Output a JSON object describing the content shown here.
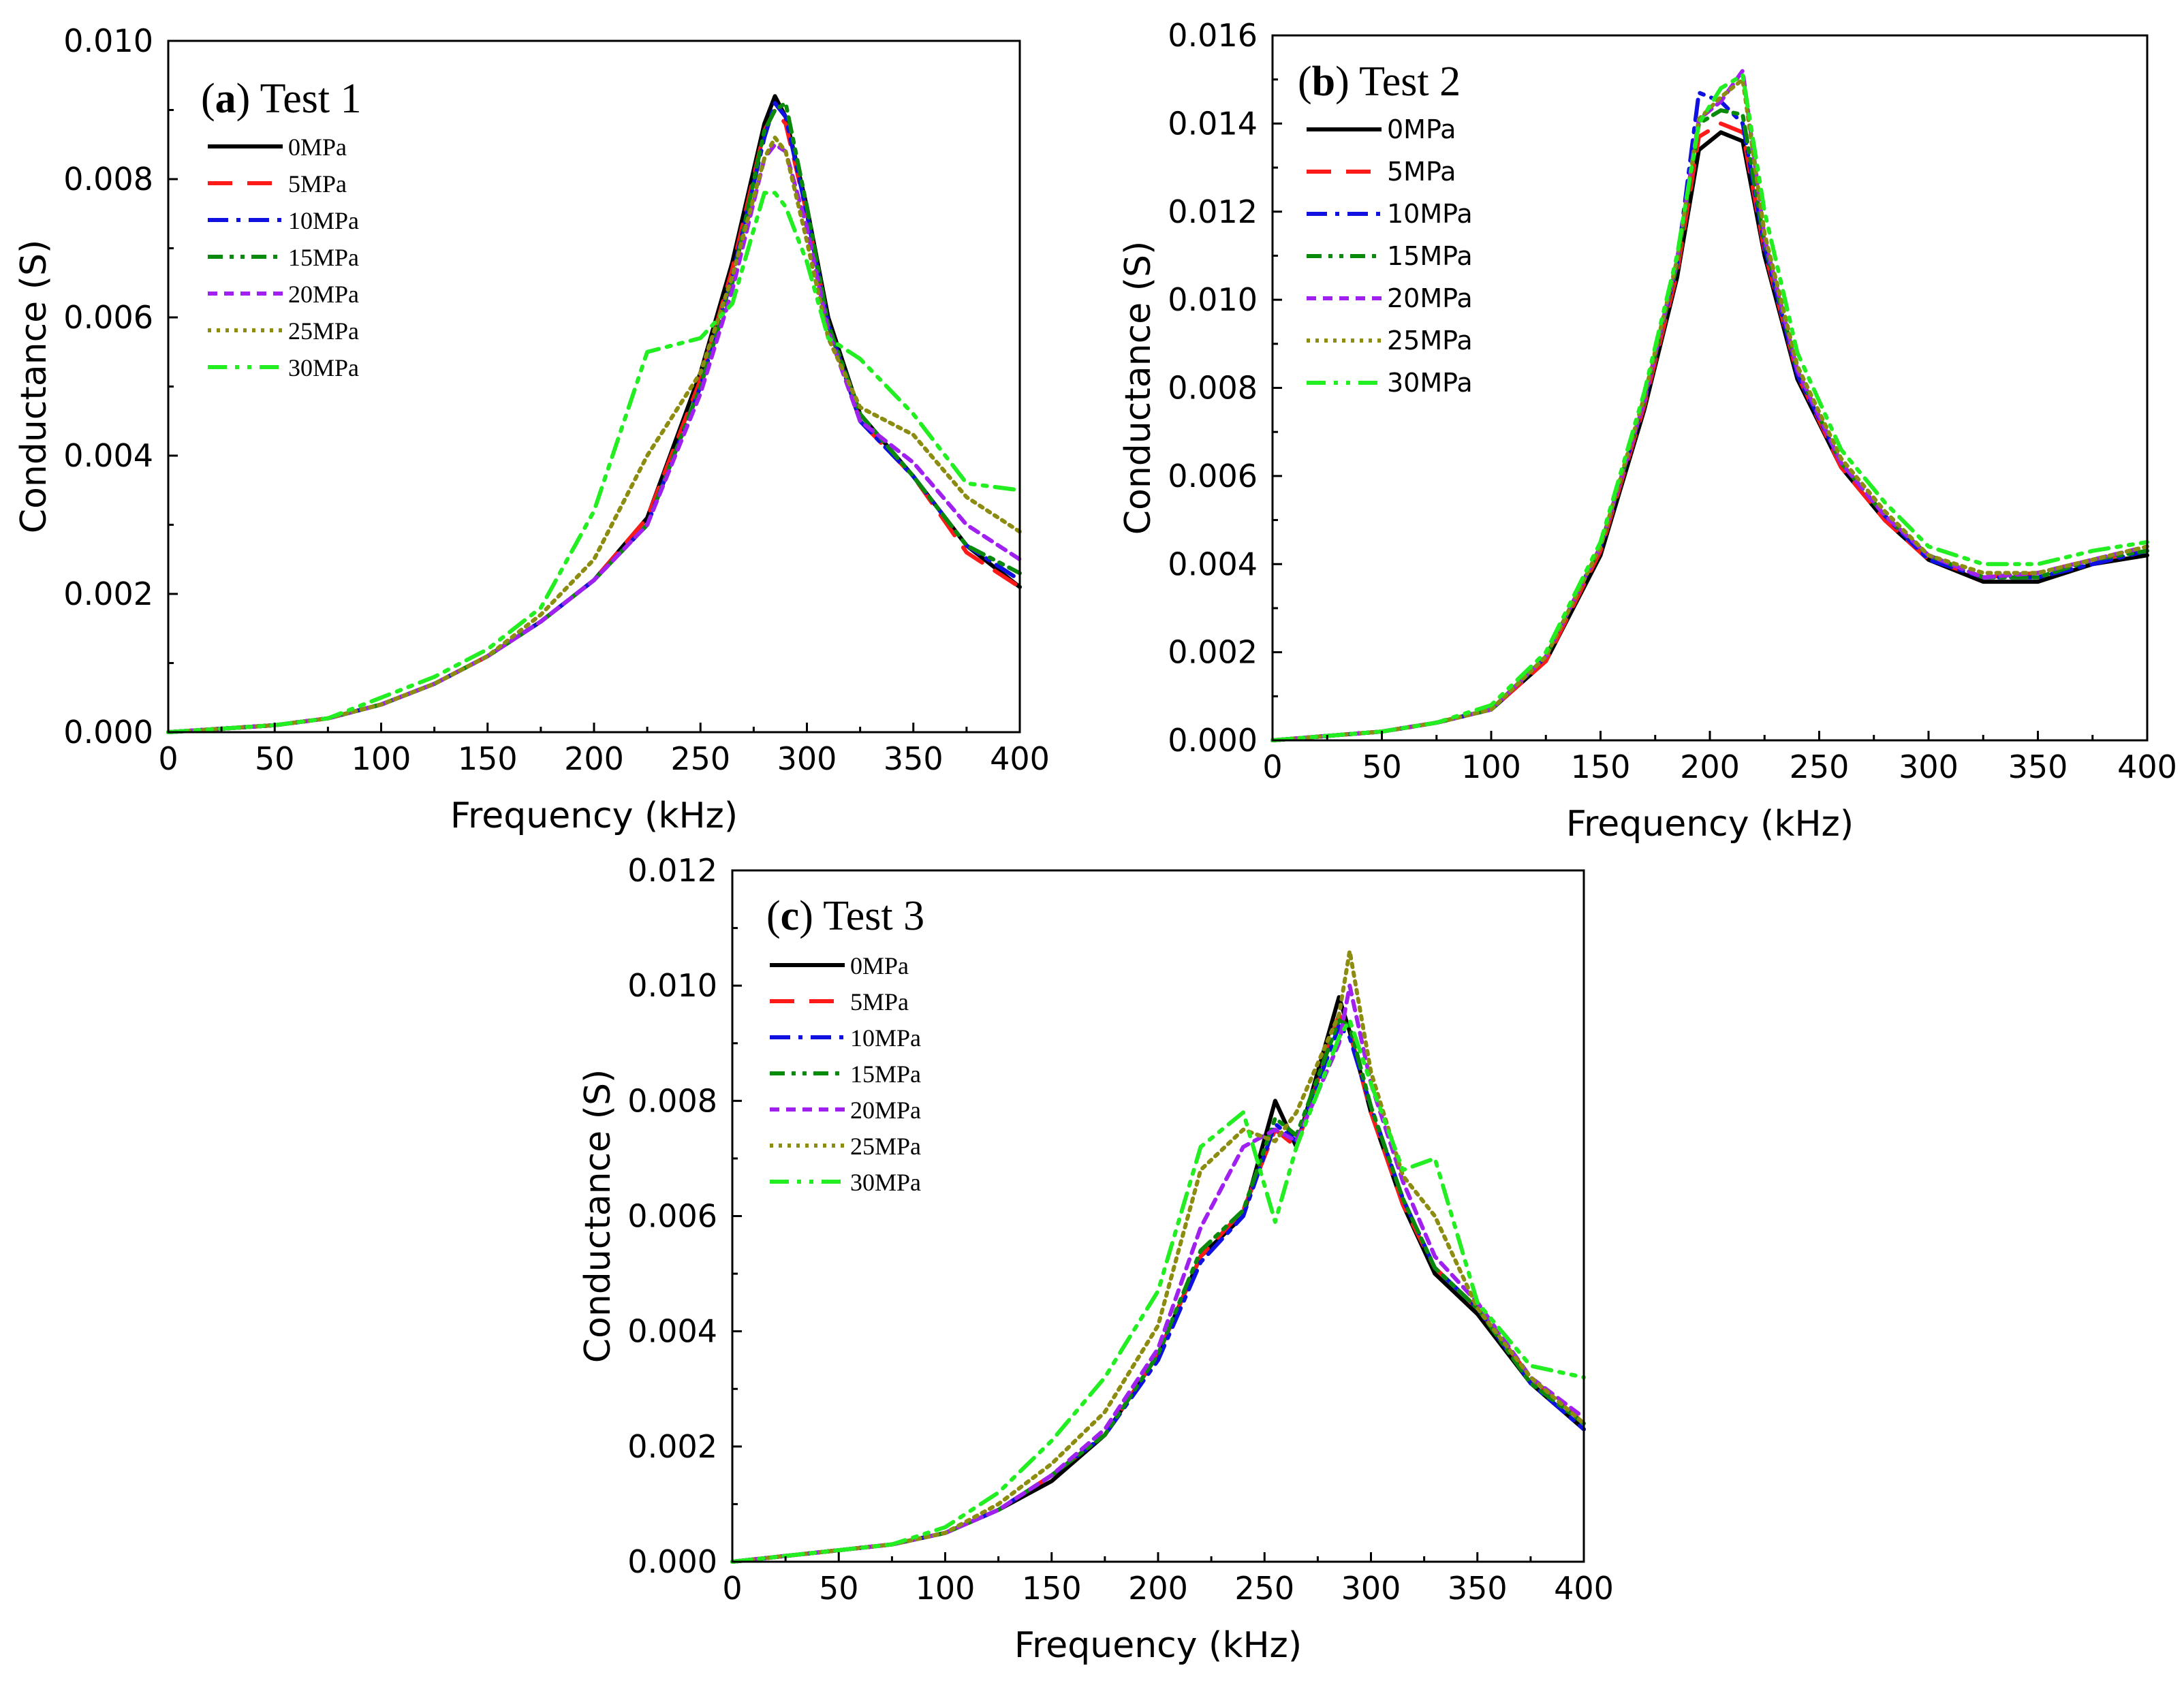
{
  "colors": {
    "0MPa": "#000000",
    "5MPa": "#ff1a1a",
    "10MPa": "#1010e0",
    "15MPa": "#0a8a0a",
    "20MPa": "#a020f0",
    "25MPa": "#8c8c10",
    "30MPa": "#22ee22"
  },
  "chart_data": [
    {
      "type": "line",
      "panel_label": "a",
      "title": "Test 1",
      "xlabel": "Frequency (kHz)",
      "ylabel": "Conductance (S)",
      "xlim": [
        0,
        400
      ],
      "ylim": [
        0,
        0.01
      ],
      "xticks": [
        "0",
        "50",
        "100",
        "150",
        "200",
        "250",
        "300",
        "350",
        "400"
      ],
      "yticks": [
        "0.000",
        "0.002",
        "0.004",
        "0.006",
        "0.008",
        "0.010"
      ],
      "legend_font": "serif",
      "legend": [
        "0MPa",
        "5MPa",
        "10MPa",
        "15MPa",
        "20MPa",
        "25MPa",
        "30MPa"
      ],
      "x": [
        0,
        25,
        50,
        75,
        100,
        125,
        150,
        175,
        200,
        225,
        250,
        265,
        280,
        285,
        290,
        300,
        310,
        325,
        350,
        375,
        400
      ],
      "series": [
        {
          "name": "0MPa",
          "values": [
            0,
            5e-05,
            0.0001,
            0.0002,
            0.0004,
            0.0007,
            0.0011,
            0.0016,
            0.0022,
            0.0031,
            0.0052,
            0.0068,
            0.0088,
            0.0092,
            0.0089,
            0.0076,
            0.006,
            0.0046,
            0.0037,
            0.0027,
            0.0021
          ]
        },
        {
          "name": "5MPa",
          "values": [
            0,
            5e-05,
            0.0001,
            0.0002,
            0.0004,
            0.0007,
            0.0011,
            0.0016,
            0.0022,
            0.0031,
            0.0051,
            0.0067,
            0.0087,
            0.009,
            0.0088,
            0.0075,
            0.0059,
            0.0045,
            0.0037,
            0.0026,
            0.0021
          ]
        },
        {
          "name": "10MPa",
          "values": [
            0,
            5e-05,
            0.0001,
            0.0002,
            0.0004,
            0.0007,
            0.0011,
            0.0016,
            0.0022,
            0.003,
            0.005,
            0.0066,
            0.0086,
            0.0091,
            0.0089,
            0.0075,
            0.0059,
            0.0045,
            0.0037,
            0.0027,
            0.0022
          ]
        },
        {
          "name": "15MPa",
          "values": [
            0,
            5e-05,
            0.0001,
            0.0002,
            0.0004,
            0.0007,
            0.0011,
            0.0016,
            0.0022,
            0.003,
            0.005,
            0.0065,
            0.0087,
            0.009,
            0.0091,
            0.0076,
            0.0059,
            0.0046,
            0.0037,
            0.0027,
            0.0023
          ]
        },
        {
          "name": "20MPa",
          "values": [
            0,
            5e-05,
            0.0001,
            0.0002,
            0.0004,
            0.0007,
            0.0011,
            0.0016,
            0.0022,
            0.003,
            0.0049,
            0.0064,
            0.0083,
            0.0085,
            0.0084,
            0.0073,
            0.0058,
            0.0045,
            0.0039,
            0.003,
            0.0025
          ]
        },
        {
          "name": "25MPa",
          "values": [
            0,
            5e-05,
            0.0001,
            0.0002,
            0.0004,
            0.0007,
            0.0011,
            0.0017,
            0.0025,
            0.004,
            0.0052,
            0.0066,
            0.0083,
            0.0086,
            0.0084,
            0.0071,
            0.0057,
            0.0047,
            0.0043,
            0.0034,
            0.0029
          ]
        },
        {
          "name": "30MPa",
          "values": [
            0,
            5e-05,
            0.0001,
            0.0002,
            0.0005,
            0.0008,
            0.0012,
            0.0018,
            0.0032,
            0.0055,
            0.0057,
            0.0062,
            0.0078,
            0.0078,
            0.0076,
            0.0068,
            0.0057,
            0.0054,
            0.0046,
            0.0036,
            0.0035
          ]
        }
      ]
    },
    {
      "type": "line",
      "panel_label": "b",
      "title": "Test 2",
      "xlabel": "Frequency (kHz)",
      "ylabel": "Conductance (S)",
      "xlim": [
        0,
        400
      ],
      "ylim": [
        0,
        0.016
      ],
      "xticks": [
        "0",
        "50",
        "100",
        "150",
        "200",
        "250",
        "300",
        "350",
        "400"
      ],
      "yticks": [
        "0.000",
        "0.002",
        "0.004",
        "0.006",
        "0.008",
        "0.010",
        "0.012",
        "0.014",
        "0.016"
      ],
      "legend_font": "sans",
      "legend": [
        "0MPa",
        "5MPa",
        "10MPa",
        "15MPa",
        "20MPa",
        "25MPa",
        "30MPa"
      ],
      "x": [
        0,
        25,
        50,
        75,
        100,
        125,
        150,
        170,
        185,
        195,
        205,
        215,
        225,
        240,
        260,
        280,
        300,
        325,
        350,
        375,
        400
      ],
      "series": [
        {
          "name": "0MPa",
          "values": [
            0,
            0.0001,
            0.0002,
            0.0004,
            0.0007,
            0.0018,
            0.0042,
            0.0075,
            0.0105,
            0.0134,
            0.0138,
            0.0136,
            0.011,
            0.0082,
            0.0062,
            0.005,
            0.0041,
            0.0036,
            0.0036,
            0.004,
            0.0042
          ]
        },
        {
          "name": "5MPa",
          "values": [
            0,
            0.0001,
            0.0002,
            0.0004,
            0.0007,
            0.0018,
            0.0043,
            0.0076,
            0.0106,
            0.0137,
            0.014,
            0.0138,
            0.0111,
            0.0083,
            0.0062,
            0.005,
            0.0041,
            0.0037,
            0.0038,
            0.0041,
            0.0043
          ]
        },
        {
          "name": "10MPa",
          "values": [
            0,
            0.0001,
            0.0002,
            0.0004,
            0.0007,
            0.0019,
            0.0044,
            0.0077,
            0.0108,
            0.0147,
            0.0145,
            0.014,
            0.0112,
            0.0083,
            0.0063,
            0.0051,
            0.0041,
            0.0037,
            0.0037,
            0.004,
            0.0043
          ]
        },
        {
          "name": "15MPa",
          "values": [
            0,
            0.0001,
            0.0002,
            0.0004,
            0.0007,
            0.0019,
            0.0044,
            0.0077,
            0.0108,
            0.014,
            0.0143,
            0.0142,
            0.0113,
            0.0084,
            0.0063,
            0.0051,
            0.0042,
            0.0037,
            0.0037,
            0.0041,
            0.0043
          ]
        },
        {
          "name": "20MPa",
          "values": [
            0,
            0.0001,
            0.0002,
            0.0004,
            0.0007,
            0.0019,
            0.0044,
            0.0077,
            0.0109,
            0.0141,
            0.0145,
            0.0152,
            0.0114,
            0.0084,
            0.0063,
            0.0051,
            0.0042,
            0.0037,
            0.0038,
            0.0041,
            0.0044
          ]
        },
        {
          "name": "25MPa",
          "values": [
            0,
            0.0001,
            0.0002,
            0.0004,
            0.0007,
            0.0019,
            0.0044,
            0.0078,
            0.0109,
            0.0141,
            0.0146,
            0.015,
            0.0115,
            0.0085,
            0.0064,
            0.0052,
            0.0042,
            0.0038,
            0.0038,
            0.0041,
            0.0044
          ]
        },
        {
          "name": "30MPa",
          "values": [
            0,
            0.0001,
            0.0002,
            0.0004,
            0.0008,
            0.002,
            0.0045,
            0.0079,
            0.011,
            0.014,
            0.0148,
            0.0151,
            0.012,
            0.0088,
            0.0066,
            0.0054,
            0.0044,
            0.004,
            0.004,
            0.0043,
            0.0045
          ]
        }
      ]
    },
    {
      "type": "line",
      "panel_label": "c",
      "title": "Test 3",
      "xlabel": "Frequency (kHz)",
      "ylabel": "Conductance (S)",
      "xlim": [
        0,
        400
      ],
      "ylim": [
        0,
        0.012
      ],
      "xticks": [
        "0",
        "50",
        "100",
        "150",
        "200",
        "250",
        "300",
        "350",
        "400"
      ],
      "yticks": [
        "0.000",
        "0.002",
        "0.004",
        "0.006",
        "0.008",
        "0.010",
        "0.012"
      ],
      "legend_font": "serif",
      "legend": [
        "0MPa",
        "5MPa",
        "10MPa",
        "15MPa",
        "20MPa",
        "25MPa",
        "30MPa"
      ],
      "x": [
        0,
        25,
        50,
        75,
        100,
        125,
        150,
        175,
        200,
        220,
        240,
        255,
        265,
        285,
        290,
        300,
        315,
        330,
        350,
        375,
        400
      ],
      "series": [
        {
          "name": "0MPa",
          "values": [
            0,
            0.0001,
            0.0002,
            0.0003,
            0.0005,
            0.0009,
            0.0014,
            0.0022,
            0.0036,
            0.0053,
            0.006,
            0.008,
            0.0072,
            0.0098,
            0.0092,
            0.0078,
            0.0062,
            0.005,
            0.0043,
            0.0031,
            0.0023
          ]
        },
        {
          "name": "5MPa",
          "values": [
            0,
            0.0001,
            0.0002,
            0.0003,
            0.0005,
            0.0009,
            0.0015,
            0.0022,
            0.0036,
            0.0053,
            0.0061,
            0.0075,
            0.0072,
            0.0095,
            0.0092,
            0.0078,
            0.0062,
            0.0051,
            0.0044,
            0.0032,
            0.0024
          ]
        },
        {
          "name": "10MPa",
          "values": [
            0,
            0.0001,
            0.0002,
            0.0003,
            0.0005,
            0.0009,
            0.0015,
            0.0022,
            0.0035,
            0.0052,
            0.006,
            0.0076,
            0.0073,
            0.0093,
            0.0091,
            0.0079,
            0.0063,
            0.0051,
            0.0044,
            0.0031,
            0.0023
          ]
        },
        {
          "name": "15MPa",
          "values": [
            0,
            0.0001,
            0.0002,
            0.0003,
            0.0005,
            0.0009,
            0.0015,
            0.0022,
            0.0036,
            0.0054,
            0.0061,
            0.0077,
            0.0074,
            0.0094,
            0.0093,
            0.0079,
            0.0063,
            0.0051,
            0.0044,
            0.0031,
            0.0024
          ]
        },
        {
          "name": "20MPa",
          "values": [
            0,
            0.0001,
            0.0002,
            0.0003,
            0.0005,
            0.0009,
            0.0015,
            0.0023,
            0.0037,
            0.0058,
            0.0072,
            0.0075,
            0.0073,
            0.009,
            0.01,
            0.0083,
            0.0066,
            0.0053,
            0.0045,
            0.0032,
            0.0025
          ]
        },
        {
          "name": "25MPa",
          "values": [
            0,
            0.0001,
            0.0002,
            0.0003,
            0.0005,
            0.001,
            0.0017,
            0.0026,
            0.0041,
            0.0068,
            0.0075,
            0.0073,
            0.0078,
            0.0095,
            0.0106,
            0.0085,
            0.0067,
            0.006,
            0.0044,
            0.0032,
            0.0024
          ]
        },
        {
          "name": "30MPa",
          "values": [
            0,
            0.0001,
            0.0002,
            0.0003,
            0.0006,
            0.0012,
            0.0021,
            0.0032,
            0.0047,
            0.0072,
            0.0078,
            0.0059,
            0.0072,
            0.0091,
            0.0094,
            0.0083,
            0.0068,
            0.007,
            0.0045,
            0.0034,
            0.0032
          ]
        }
      ]
    }
  ]
}
